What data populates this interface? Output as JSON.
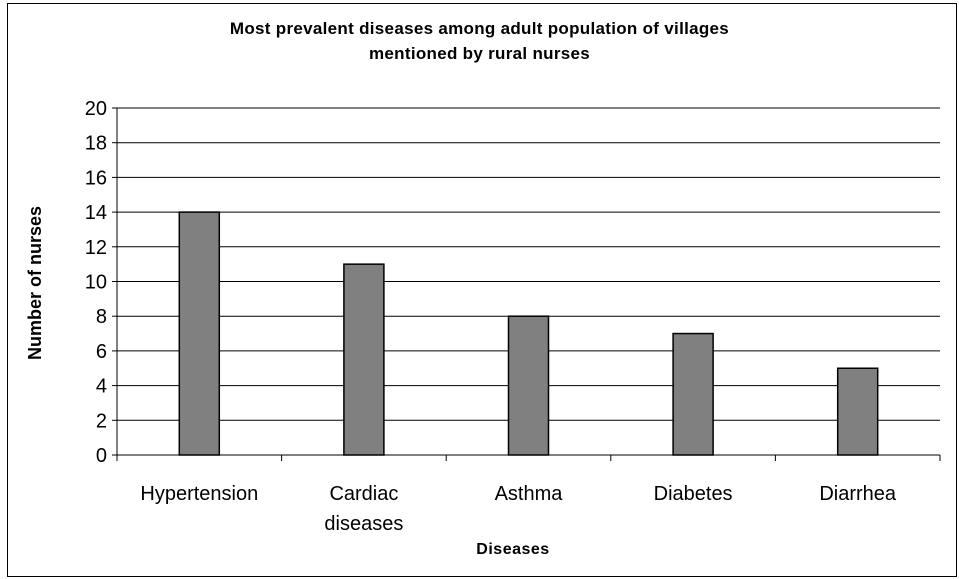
{
  "chart_data": {
    "type": "bar",
    "title_lines": [
      "Most prevalent diseases among adult population of villages",
      "mentioned by rural nurses"
    ],
    "xlabel": "Diseases",
    "ylabel": "Number of nurses",
    "categories": [
      [
        "Hypertension"
      ],
      [
        "Cardiac",
        "diseases"
      ],
      [
        "Asthma"
      ],
      [
        "Diabetes"
      ],
      [
        "Diarrhea"
      ]
    ],
    "values": [
      14,
      11,
      8,
      7,
      5
    ],
    "ylim": [
      0,
      20
    ],
    "yticks": [
      0,
      2,
      4,
      6,
      8,
      10,
      12,
      14,
      16,
      18,
      20
    ],
    "grid": true,
    "legend": "none",
    "colors": {
      "bar": "#808080",
      "bar_stroke": "#000000",
      "grid": "#000000"
    }
  }
}
